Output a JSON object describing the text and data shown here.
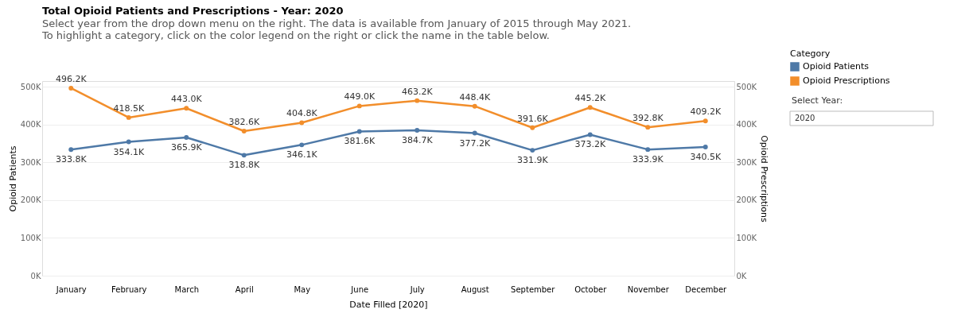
{
  "chart_data": {
    "type": "line",
    "title": "Total Opioid Patients and Prescriptions - Year: 2020",
    "subtitle": "Select year from the drop down menu on the right. The data is available from January of 2015 through May 2021.\nTo highlight a category, click on the color legend on the right or click the name in the table below.",
    "xlabel": "Date Filled [2020]",
    "ylabel": "Opioid Patients",
    "y2label": "Opioid Prescriptions",
    "legend_title": "Category",
    "categories": [
      "January",
      "February",
      "March",
      "April",
      "May",
      "June",
      "July",
      "August",
      "September",
      "October",
      "November",
      "December"
    ],
    "series": [
      {
        "name": "Opioid Patients",
        "color": "#4e79a7",
        "values": [
          333800,
          354100,
          365900,
          318800,
          346100,
          381600,
          384700,
          377200,
          331900,
          373200,
          333900,
          340500
        ],
        "value_labels": [
          "333.8K",
          "354.1K",
          "365.9K",
          "318.8K",
          "346.1K",
          "381.6K",
          "384.7K",
          "377.2K",
          "331.9K",
          "373.2K",
          "333.9K",
          "340.5K"
        ]
      },
      {
        "name": "Opioid Prescriptions",
        "color": "#f28e2b",
        "axis": "y2",
        "values": [
          496200,
          418500,
          443000,
          382600,
          404800,
          449000,
          463200,
          448400,
          391600,
          445200,
          392800,
          409200
        ],
        "value_labels": [
          "496.2K",
          "418.5K",
          "443.0K",
          "382.6K",
          "404.8K",
          "449.0K",
          "463.2K",
          "448.4K",
          "391.6K",
          "445.2K",
          "392.8K",
          "409.2K"
        ]
      }
    ],
    "ylim": [
      0,
      515000
    ],
    "yticks": [
      {
        "value": 0,
        "label": "0K"
      },
      {
        "value": 100000,
        "label": "100K"
      },
      {
        "value": 200000,
        "label": "200K"
      },
      {
        "value": 300000,
        "label": "300K"
      },
      {
        "value": 400000,
        "label": "400K"
      },
      {
        "value": 500000,
        "label": "500K"
      }
    ],
    "y2lim": [
      0,
      515000
    ],
    "y2ticks": [
      {
        "value": 0,
        "label": "0K"
      },
      {
        "value": 100000,
        "label": "100K"
      },
      {
        "value": 200000,
        "label": "200K"
      },
      {
        "value": 300000,
        "label": "300K"
      },
      {
        "value": 400000,
        "label": "400K"
      },
      {
        "value": 500000,
        "label": "500K"
      }
    ],
    "grid": "y",
    "legend": "top right",
    "marker": "circle",
    "line_style": "solid",
    "annotations": [
      "Select Year:",
      "2020"
    ]
  }
}
